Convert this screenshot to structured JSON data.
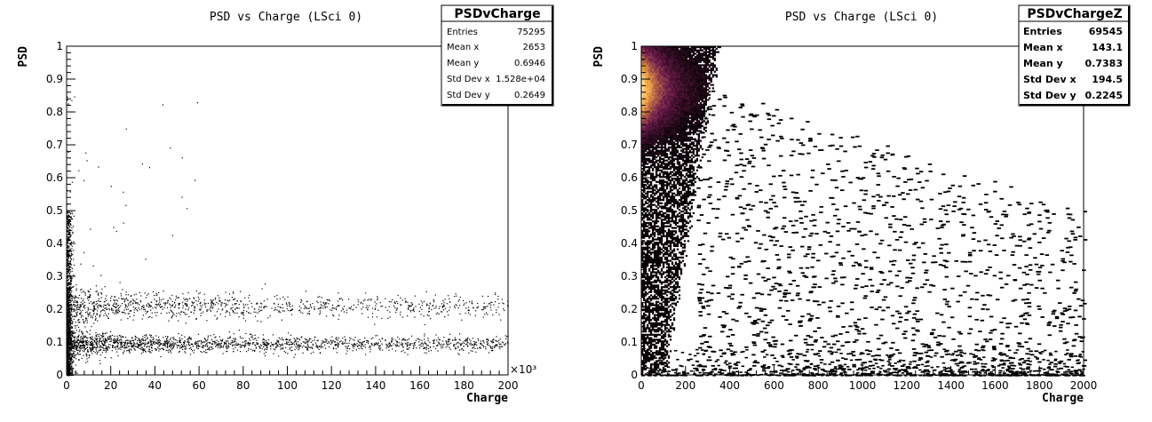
{
  "chart_data": [
    {
      "type": "scatter",
      "title": "PSD vs Charge (LSci 0)",
      "xlabel": "Charge",
      "ylabel": "PSD",
      "x_multiplier_label": "×10³",
      "xlim": [
        0,
        200
      ],
      "ylim": [
        0,
        1
      ],
      "x_ticks": [
        "0",
        "20",
        "40",
        "60",
        "80",
        "100",
        "120",
        "140",
        "160",
        "180",
        "200"
      ],
      "y_ticks": [
        "0",
        "0.1",
        "0.2",
        "0.3",
        "0.4",
        "0.5",
        "0.6",
        "0.7",
        "0.8",
        "0.9",
        "1"
      ],
      "stats": {
        "name": "PSDvCharge",
        "rows": [
          {
            "label": "Entries",
            "value": "75295"
          },
          {
            "label": "Mean x",
            "value": "2653"
          },
          {
            "label": "Mean y",
            "value": "0.6946"
          },
          {
            "label": "Std Dev x",
            "value": "1.528e+04"
          },
          {
            "label": "Std Dev y",
            "value": "0.2649"
          }
        ]
      },
      "bands": [
        {
          "y": 0.095,
          "x_start": 0,
          "x_end": 200,
          "spread": 0.012,
          "density": 0.9
        },
        {
          "y": 0.21,
          "x_start": 0,
          "x_end": 200,
          "spread": 0.018,
          "density": 0.55
        }
      ],
      "colors": {
        "points": "#000000"
      }
    },
    {
      "type": "heatmap",
      "title": "PSD vs Charge (LSci 0)",
      "xlabel": "Charge",
      "ylabel": "PSD",
      "xlim": [
        0,
        2000
      ],
      "ylim": [
        0,
        1
      ],
      "x_ticks": [
        "0",
        "200",
        "400",
        "600",
        "800",
        "1000",
        "1200",
        "1400",
        "1600",
        "1800",
        "2000"
      ],
      "y_ticks": [
        "0",
        "0.1",
        "0.2",
        "0.3",
        "0.4",
        "0.5",
        "0.6",
        "0.7",
        "0.8",
        "0.9",
        "1"
      ],
      "stats": {
        "name": "PSDvChargeZ",
        "rows": [
          {
            "label": "Entries",
            "value": "69545"
          },
          {
            "label": "Mean x",
            "value": "143.1"
          },
          {
            "label": "Mean y",
            "value": "0.7383"
          },
          {
            "label": "Std Dev x",
            "value": "194.5"
          },
          {
            "label": "Std Dev y",
            "value": "0.2245"
          }
        ]
      },
      "hot_region": {
        "psd_peak": 0.87,
        "charge_peak": 40,
        "charge_edge_at_top": 320,
        "charge_edge_at_bottom": 80
      },
      "colors": {
        "low": "#000000",
        "mid": "#6a1a4a",
        "high": "#f0a040",
        "peak": "#ffe6a0"
      }
    }
  ]
}
